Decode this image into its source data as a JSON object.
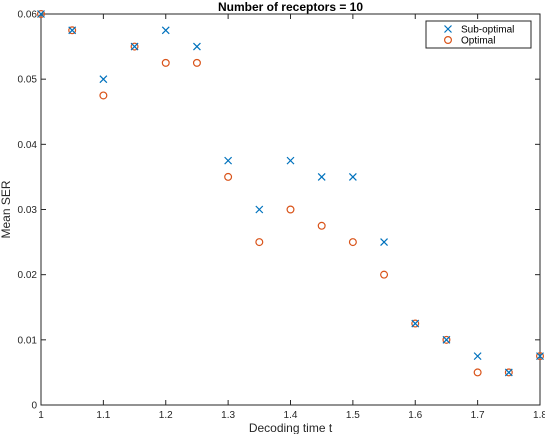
{
  "chart_data": {
    "type": "scatter",
    "title": "Number of receptors = 10",
    "xlabel": "Decoding time t",
    "ylabel": "Mean SER",
    "xlim": [
      1,
      1.8
    ],
    "ylim": [
      0,
      0.06
    ],
    "xticks": [
      "1",
      "1.1",
      "1.2",
      "1.3",
      "1.4",
      "1.5",
      "1.6",
      "1.7",
      "1.8"
    ],
    "yticks": [
      "0",
      "0.01",
      "0.02",
      "0.03",
      "0.04",
      "0.05",
      "0.06"
    ],
    "legend_position": "top-right",
    "grid": false,
    "x": [
      1.0,
      1.05,
      1.1,
      1.15,
      1.2,
      1.25,
      1.3,
      1.35,
      1.4,
      1.45,
      1.5,
      1.55,
      1.6,
      1.65,
      1.7,
      1.75,
      1.8
    ],
    "series": [
      {
        "name": "Sub-optimal",
        "marker": "x",
        "color": "#0072BD",
        "values": [
          0.06,
          0.0575,
          0.05,
          0.055,
          0.0575,
          0.055,
          0.0375,
          0.03,
          0.0375,
          0.035,
          0.035,
          0.025,
          0.0125,
          0.01,
          0.0075,
          0.005,
          0.0075
        ]
      },
      {
        "name": "Optimal",
        "marker": "circle",
        "color": "#D95319",
        "values": [
          0.06,
          0.0575,
          0.0475,
          0.055,
          0.0525,
          0.0525,
          0.035,
          0.025,
          0.03,
          0.0275,
          0.025,
          0.02,
          0.0125,
          0.01,
          0.005,
          0.005,
          0.0075
        ]
      }
    ]
  }
}
